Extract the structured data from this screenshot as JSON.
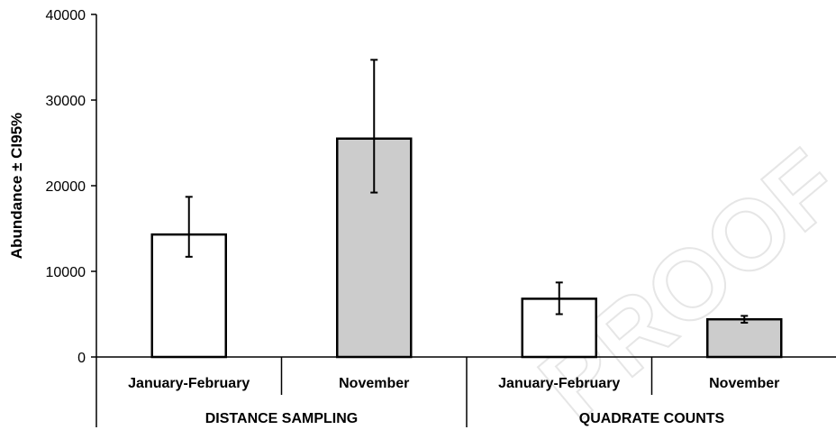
{
  "chart_data": {
    "type": "bar",
    "ylabel": "Abundance ± CI95%",
    "ylim": [
      0,
      40000
    ],
    "yticks": [
      0,
      10000,
      20000,
      30000,
      40000
    ],
    "grid": false,
    "legend": "none",
    "watermark": "PROOF",
    "groups": [
      {
        "label": "DISTANCE SAMPLING",
        "categories": [
          {
            "label": "January-February",
            "value": 14300,
            "ci_low": 11700,
            "ci_high": 18700,
            "color": "#ffffff"
          },
          {
            "label": "November",
            "value": 25500,
            "ci_low": 19200,
            "ci_high": 34700,
            "color": "#cccccc"
          }
        ]
      },
      {
        "label": "QUADRATE COUNTS",
        "categories": [
          {
            "label": "January-February",
            "value": 6800,
            "ci_low": 5000,
            "ci_high": 8700,
            "color": "#ffffff"
          },
          {
            "label": "November",
            "value": 4400,
            "ci_low": 4000,
            "ci_high": 4800,
            "color": "#cccccc"
          }
        ]
      }
    ]
  }
}
